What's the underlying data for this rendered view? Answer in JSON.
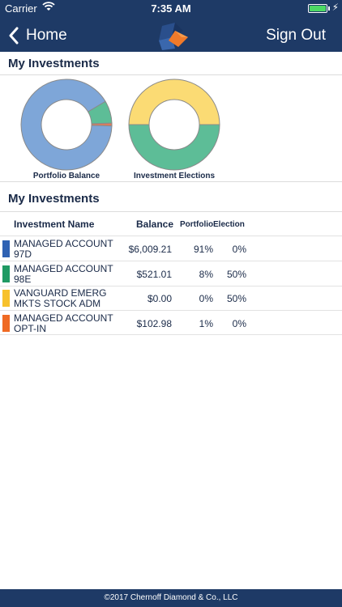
{
  "status_bar": {
    "carrier": "Carrier",
    "time": "7:35 AM"
  },
  "nav": {
    "back_label": "Home",
    "sign_out_label": "Sign Out"
  },
  "charts_section": {
    "title": "My Investments"
  },
  "table_section": {
    "title": "My Investments"
  },
  "charts": [
    {
      "label": "Portfolio Balance",
      "values": [
        91,
        8,
        0,
        1
      ]
    },
    {
      "label": "Investment Elections",
      "values": [
        0,
        50,
        50,
        0
      ]
    }
  ],
  "table": {
    "headers": {
      "name": "Investment Name",
      "balance": "Balance",
      "portfolio": "Portfolio",
      "election": "Election"
    },
    "rows": [
      {
        "name": "MANAGED ACCOUNT 97D",
        "balance": "$6,009.21",
        "portfolio": "91%",
        "election": "0%",
        "color": "#2f62b3"
      },
      {
        "name": "MANAGED ACCOUNT 98E",
        "balance": "$521.01",
        "portfolio": "8%",
        "election": "50%",
        "color": "#1f9a63"
      },
      {
        "name": "VANGUARD EMERG MKTS STOCK ADM",
        "balance": "$0.00",
        "portfolio": "0%",
        "election": "50%",
        "color": "#f7c12c"
      },
      {
        "name": "MANAGED ACCOUNT OPT-IN",
        "balance": "$102.98",
        "portfolio": "1%",
        "election": "0%",
        "color": "#ef6a24"
      }
    ]
  },
  "chart_colors": [
    "#7ea6d8",
    "#5dbd97",
    "#fbdb74",
    "#e07b5a"
  ],
  "footer": {
    "text": "©2017 Chernoff Diamond & Co., LLC"
  }
}
